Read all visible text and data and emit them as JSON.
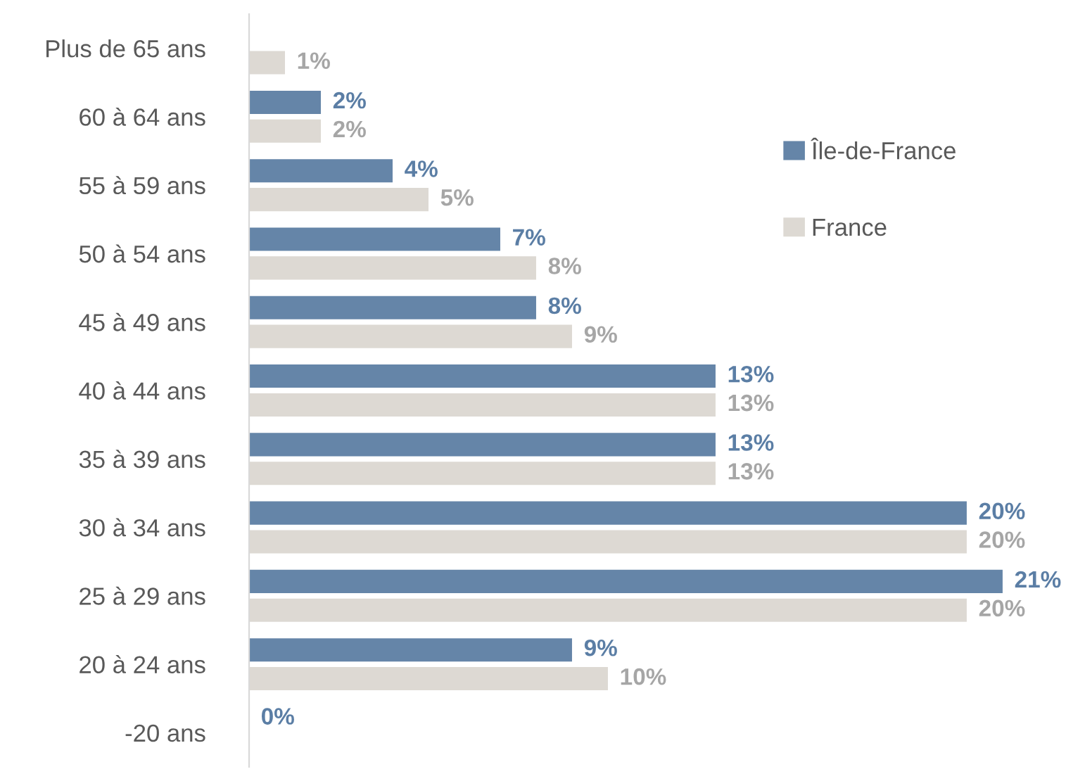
{
  "chart_data": {
    "type": "bar",
    "orientation": "horizontal",
    "tick_labels": "y",
    "legend": "top right",
    "categories": [
      "Plus de 65 ans",
      "60 à 64 ans",
      "55 à 59 ans",
      "50 à 54 ans",
      "45 à 49 ans",
      "40 à 44 ans",
      "35 à 39 ans",
      "30 à 34 ans",
      "25 à 29 ans",
      "20 à 24 ans",
      "-20 ans"
    ],
    "series": [
      {
        "name": "Île-de-France",
        "color": "#6585a8",
        "values": [
          null,
          2,
          4,
          7,
          8,
          13,
          13,
          20,
          21,
          9,
          0
        ],
        "value_labels": [
          null,
          "2%",
          "4%",
          "7%",
          "8%",
          "13%",
          "13%",
          "20%",
          "21%",
          "9%",
          "0%"
        ]
      },
      {
        "name": "France",
        "color": "#ddd9d3",
        "values": [
          1,
          2,
          5,
          8,
          9,
          13,
          13,
          20,
          20,
          10,
          null
        ],
        "value_labels": [
          "1%",
          "2%",
          "5%",
          "8%",
          "9%",
          "13%",
          "13%",
          "20%",
          "20%",
          "10%",
          null
        ]
      }
    ]
  }
}
